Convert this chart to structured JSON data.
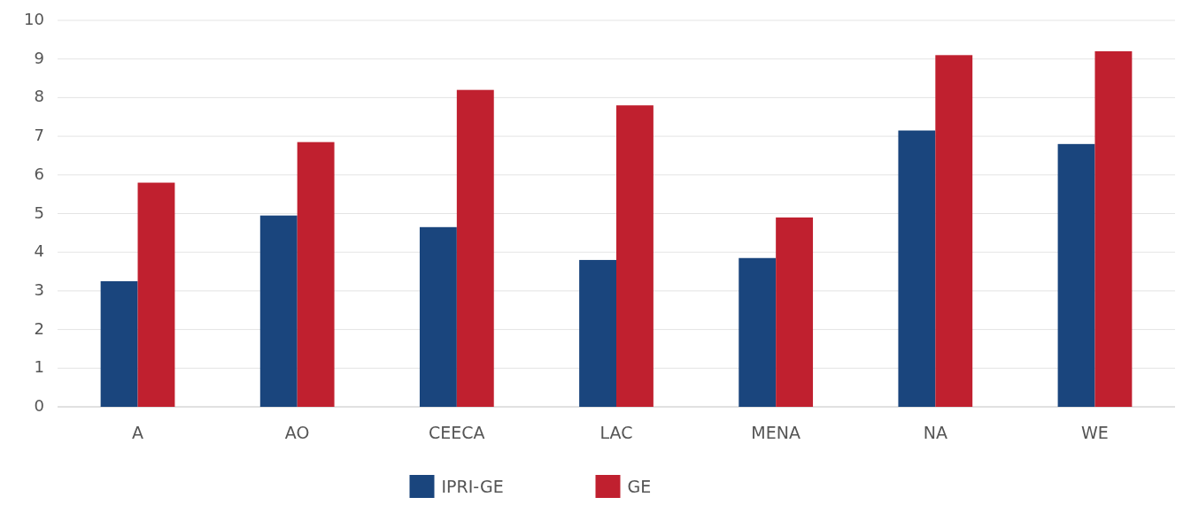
{
  "chart_data": {
    "type": "bar",
    "categories": [
      "A",
      "AO",
      "CEECA",
      "LAC",
      "MENA",
      "NA",
      "WE"
    ],
    "series": [
      {
        "name": "IPRI-GE",
        "color": "#1a457d",
        "values": [
          3.25,
          4.95,
          4.65,
          3.8,
          3.85,
          7.15,
          6.8
        ]
      },
      {
        "name": "GE",
        "color": "#c0202f",
        "values": [
          5.8,
          6.85,
          8.2,
          7.8,
          4.9,
          9.1,
          9.2
        ]
      }
    ],
    "ylim": [
      0,
      10
    ],
    "yticks": [
      0,
      1,
      2,
      3,
      4,
      5,
      6,
      7,
      8,
      9,
      10
    ],
    "grid": "y",
    "legend": "bottom"
  }
}
